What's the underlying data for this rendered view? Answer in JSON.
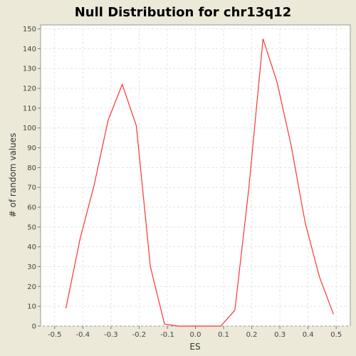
{
  "chart_data": {
    "type": "line",
    "title": "Null Distribution for chr13q12",
    "xlabel": "ES",
    "ylabel": "# of random values",
    "xlim": [
      -0.55,
      0.55
    ],
    "ylim": [
      0,
      152
    ],
    "x_ticks": [
      "-0.5",
      "-0.4",
      "-0.3",
      "-0.2",
      "-0.1",
      "0.0",
      "0.1",
      "0.2",
      "0.3",
      "0.4",
      "0.5"
    ],
    "y_ticks": [
      "0",
      "10",
      "20",
      "30",
      "40",
      "50",
      "60",
      "70",
      "80",
      "90",
      "100",
      "110",
      "120",
      "130",
      "140",
      "150"
    ],
    "grid": true,
    "series": [
      {
        "color": "#ff3333",
        "x": [
          -0.46,
          -0.41,
          -0.36,
          -0.31,
          -0.26,
          -0.21,
          -0.16,
          -0.11,
          -0.06,
          -0.01,
          0.04,
          0.09,
          0.14,
          0.19,
          0.24,
          0.29,
          0.34,
          0.39,
          0.44,
          0.49
        ],
        "y": [
          9,
          44,
          71,
          104,
          122,
          101,
          30,
          1,
          0,
          0,
          0,
          0,
          8,
          70,
          145,
          123,
          91,
          52,
          25,
          6
        ]
      }
    ]
  }
}
